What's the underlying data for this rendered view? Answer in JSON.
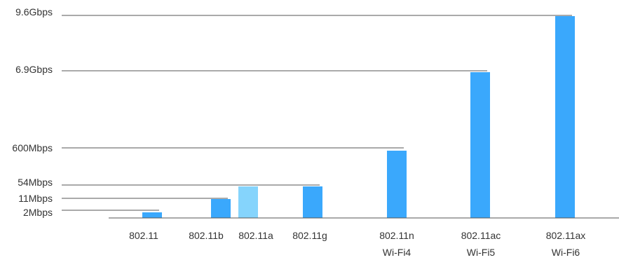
{
  "chart_data": {
    "type": "bar",
    "title": "",
    "xlabel": "",
    "ylabel": "",
    "scale": "non-linear",
    "y_ticks": [
      {
        "label": "2Mbps",
        "value_mbps": 2
      },
      {
        "label": "11Mbps",
        "value_mbps": 11
      },
      {
        "label": "54Mbps",
        "value_mbps": 54
      },
      {
        "label": "600Mbps",
        "value_mbps": 600
      },
      {
        "label": "6.9Gbps",
        "value_mbps": 6900
      },
      {
        "label": "9.6Gbps",
        "value_mbps": 9600
      }
    ],
    "categories": [
      {
        "label": "802.11",
        "sublabel": "",
        "value_mbps": 2,
        "color": "#3aa8fc"
      },
      {
        "label": "802.11b",
        "sublabel": "",
        "value_mbps": 11,
        "color": "#3aa8fc"
      },
      {
        "label": "802.11a",
        "sublabel": "",
        "value_mbps": 54,
        "color": "#85d4fc"
      },
      {
        "label": "802.11g",
        "sublabel": "",
        "value_mbps": 54,
        "color": "#3aa8fc"
      },
      {
        "label": "802.11n",
        "sublabel": "Wi-Fi4",
        "value_mbps": 600,
        "color": "#3aa8fc"
      },
      {
        "label": "802.11ac",
        "sublabel": "Wi-Fi5",
        "value_mbps": 6900,
        "color": "#3aa8fc"
      },
      {
        "label": "802.11ax",
        "sublabel": "Wi-Fi6",
        "value_mbps": 9600,
        "color": "#3aa8fc"
      }
    ],
    "reference_lines": [
      {
        "tick_index": 0,
        "to_category": 0
      },
      {
        "tick_index": 1,
        "to_category": 1
      },
      {
        "tick_index": 2,
        "to_category": 3
      },
      {
        "tick_index": 3,
        "to_category": 4
      },
      {
        "tick_index": 4,
        "to_category": 5
      },
      {
        "tick_index": 5,
        "to_category": 6
      }
    ],
    "grid": false,
    "legend": "none"
  }
}
